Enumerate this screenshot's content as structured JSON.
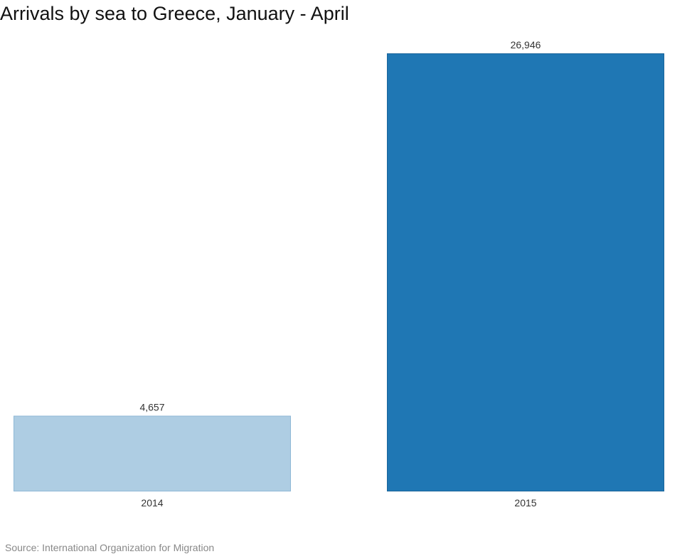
{
  "chart_data": {
    "type": "bar",
    "title": "Arrivals by sea to Greece, January - April",
    "categories": [
      "2014",
      "2015"
    ],
    "values": [
      4657,
      26946
    ],
    "value_labels": [
      "4,657",
      "26,946"
    ],
    "colors": [
      "#aecde3",
      "#1f77b4"
    ],
    "border_colors": [
      "#8fb8d6",
      "#1a659b"
    ],
    "xlabel": "",
    "ylabel": "",
    "ylim": [
      0,
      26946
    ],
    "grid": false,
    "legend": "none",
    "source": "Source: International Organization for Migration"
  }
}
